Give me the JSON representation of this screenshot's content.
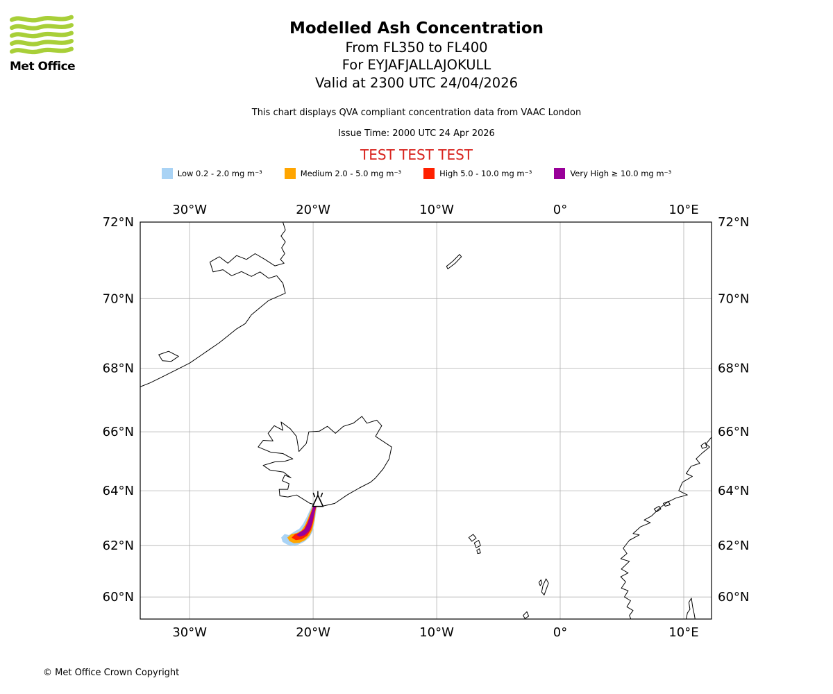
{
  "header": {
    "logo_text": "Met Office",
    "title": "Modelled Ash Concentration",
    "subtitle_flight_levels": "From FL350 to FL400",
    "subtitle_volcano": "For EYJAFJALLAJOKULL",
    "subtitle_valid": "Valid at 2300 UTC 24/04/2026",
    "note": "This chart displays QVA compliant concentration data from VAAC London",
    "issue_time": "Issue Time: 2000 UTC 24 Apr 2026",
    "test_banner": "TEST TEST TEST"
  },
  "colors": {
    "test_banner": "#d8231e",
    "grid": "#b0b0b0",
    "coastline": "#000000",
    "map_border": "#000000",
    "logo_green": "#a8cf38"
  },
  "legend": {
    "items": [
      {
        "key": "low",
        "label": "Low 0.2 - 2.0 mg m⁻³",
        "color": "#a9d3f5"
      },
      {
        "key": "medium",
        "label": "Medium 2.0 - 5.0 mg m⁻³",
        "color": "#ffa500"
      },
      {
        "key": "high",
        "label": "High 5.0 - 10.0 mg m⁻³",
        "color": "#ff2000"
      },
      {
        "key": "very-high",
        "label": "Very High ≥ 10.0 mg m⁻³",
        "color": "#990099"
      }
    ]
  },
  "footer": {
    "copyright": "© Met Office Crown Copyright"
  },
  "chart_data": {
    "type": "map",
    "projection": "mercator",
    "lon_range": [
      -34.0,
      12.25
    ],
    "lat_range": [
      59.1,
      72.0
    ],
    "grid_lons": [
      -30,
      -20,
      -10,
      0,
      10
    ],
    "lon_labels": [
      "30°W",
      "20°W",
      "10°W",
      "0°",
      "10°E"
    ],
    "grid_lats": [
      60,
      62,
      64,
      66,
      68,
      70,
      72
    ],
    "lat_labels": [
      "60°N",
      "62°N",
      "64°N",
      "66°N",
      "68°N",
      "70°N",
      "72°N"
    ],
    "volcano": {
      "name": "EYJAFJALLAJOKULL",
      "lon": -19.62,
      "lat": 63.63
    },
    "coastlines": [
      {
        "name": "greenland-east-coast",
        "points": [
          [
            -22.55,
            72.1
          ],
          [
            -22.25,
            71.8
          ],
          [
            -22.6,
            71.65
          ],
          [
            -22.25,
            71.5
          ],
          [
            -22.55,
            71.35
          ],
          [
            -22.3,
            71.2
          ],
          [
            -22.65,
            71.05
          ],
          [
            -22.35,
            70.95
          ],
          [
            -23.1,
            70.88
          ],
          [
            -23.9,
            71.05
          ],
          [
            -24.7,
            71.2
          ],
          [
            -25.4,
            71.05
          ],
          [
            -26.2,
            71.15
          ],
          [
            -26.9,
            70.95
          ],
          [
            -27.6,
            71.12
          ],
          [
            -28.35,
            70.98
          ],
          [
            -28.1,
            70.72
          ],
          [
            -27.3,
            70.78
          ],
          [
            -26.6,
            70.62
          ],
          [
            -25.8,
            70.73
          ],
          [
            -25.0,
            70.6
          ],
          [
            -24.3,
            70.72
          ],
          [
            -23.6,
            70.55
          ],
          [
            -22.95,
            70.62
          ],
          [
            -22.45,
            70.42
          ],
          [
            -22.25,
            70.15
          ],
          [
            -22.9,
            70.05
          ],
          [
            -23.6,
            69.95
          ],
          [
            -24.3,
            69.75
          ],
          [
            -25.0,
            69.55
          ],
          [
            -25.5,
            69.3
          ],
          [
            -26.2,
            69.15
          ],
          [
            -26.9,
            68.95
          ],
          [
            -27.6,
            68.75
          ],
          [
            -28.4,
            68.55
          ],
          [
            -29.2,
            68.35
          ],
          [
            -30.0,
            68.15
          ],
          [
            -30.8,
            68.0
          ],
          [
            -31.6,
            67.85
          ],
          [
            -32.4,
            67.7
          ],
          [
            -33.2,
            67.55
          ],
          [
            -34.2,
            67.4
          ]
        ]
      },
      {
        "name": "norway-west-coast",
        "points": [
          [
            12.3,
            65.85
          ],
          [
            11.8,
            65.6
          ],
          [
            12.1,
            65.5
          ],
          [
            11.5,
            65.3
          ],
          [
            11.0,
            65.1
          ],
          [
            11.3,
            64.95
          ],
          [
            10.6,
            64.85
          ],
          [
            10.2,
            64.6
          ],
          [
            10.7,
            64.5
          ],
          [
            9.9,
            64.3
          ],
          [
            9.6,
            64.0
          ],
          [
            10.3,
            63.85
          ],
          [
            9.4,
            63.75
          ],
          [
            8.7,
            63.6
          ],
          [
            8.1,
            63.4
          ],
          [
            7.4,
            63.1
          ],
          [
            6.8,
            62.95
          ],
          [
            7.3,
            62.85
          ],
          [
            6.5,
            62.7
          ],
          [
            5.9,
            62.45
          ],
          [
            6.4,
            62.4
          ],
          [
            5.6,
            62.2
          ],
          [
            5.1,
            61.9
          ],
          [
            5.4,
            61.7
          ],
          [
            4.9,
            61.5
          ],
          [
            5.6,
            61.4
          ],
          [
            4.95,
            61.1
          ],
          [
            5.5,
            60.95
          ],
          [
            4.9,
            60.8
          ],
          [
            5.3,
            60.6
          ],
          [
            4.95,
            60.35
          ],
          [
            5.5,
            60.25
          ],
          [
            5.2,
            60.0
          ],
          [
            5.7,
            59.85
          ],
          [
            5.4,
            59.6
          ],
          [
            5.9,
            59.45
          ],
          [
            5.6,
            59.25
          ],
          [
            5.8,
            59.0
          ]
        ]
      },
      {
        "name": "oslofjord-coast",
        "points": [
          [
            10.15,
            59.0
          ],
          [
            10.3,
            59.35
          ],
          [
            10.5,
            59.5
          ],
          [
            10.42,
            59.78
          ],
          [
            10.62,
            59.95
          ],
          [
            10.72,
            59.6
          ],
          [
            10.85,
            59.3
          ],
          [
            10.95,
            59.0
          ]
        ]
      }
    ],
    "islands": [
      {
        "name": "scoresby-island",
        "points": [
          [
            -32.5,
            68.4
          ],
          [
            -31.7,
            68.5
          ],
          [
            -30.9,
            68.35
          ],
          [
            -31.5,
            68.2
          ],
          [
            -32.2,
            68.22
          ]
        ]
      },
      {
        "name": "jan-mayen",
        "points": [
          [
            -9.1,
            70.8
          ],
          [
            -8.5,
            70.95
          ],
          [
            -8.0,
            71.12
          ],
          [
            -8.15,
            71.18
          ],
          [
            -8.7,
            71.0
          ],
          [
            -9.2,
            70.87
          ]
        ]
      },
      {
        "name": "iceland",
        "points": [
          [
            -22.7,
            63.82
          ],
          [
            -22.75,
            64.05
          ],
          [
            -22.05,
            64.05
          ],
          [
            -21.95,
            64.25
          ],
          [
            -22.5,
            64.35
          ],
          [
            -22.3,
            64.55
          ],
          [
            -21.8,
            64.45
          ],
          [
            -22.4,
            64.65
          ],
          [
            -23.5,
            64.72
          ],
          [
            -24.05,
            64.88
          ],
          [
            -23.1,
            65.0
          ],
          [
            -22.3,
            65.02
          ],
          [
            -21.65,
            65.1
          ],
          [
            -22.45,
            65.28
          ],
          [
            -23.4,
            65.32
          ],
          [
            -24.45,
            65.5
          ],
          [
            -24.05,
            65.72
          ],
          [
            -23.25,
            65.7
          ],
          [
            -23.65,
            65.95
          ],
          [
            -23.15,
            66.2
          ],
          [
            -22.45,
            66.05
          ],
          [
            -22.6,
            66.32
          ],
          [
            -21.85,
            66.1
          ],
          [
            -21.35,
            65.85
          ],
          [
            -21.15,
            65.35
          ],
          [
            -20.55,
            65.62
          ],
          [
            -20.35,
            66.0
          ],
          [
            -19.5,
            66.02
          ],
          [
            -18.85,
            66.18
          ],
          [
            -18.2,
            65.95
          ],
          [
            -17.55,
            66.18
          ],
          [
            -16.75,
            66.28
          ],
          [
            -16.05,
            66.5
          ],
          [
            -15.65,
            66.28
          ],
          [
            -14.85,
            66.38
          ],
          [
            -14.45,
            66.2
          ],
          [
            -14.95,
            65.85
          ],
          [
            -13.65,
            65.5
          ],
          [
            -13.85,
            65.1
          ],
          [
            -14.35,
            64.75
          ],
          [
            -14.95,
            64.45
          ],
          [
            -15.35,
            64.3
          ],
          [
            -16.25,
            64.1
          ],
          [
            -17.25,
            63.85
          ],
          [
            -18.25,
            63.55
          ],
          [
            -19.25,
            63.45
          ],
          [
            -20.25,
            63.55
          ],
          [
            -21.35,
            63.85
          ],
          [
            -22.05,
            63.78
          ]
        ]
      },
      {
        "name": "faroe-north",
        "points": [
          [
            -7.4,
            62.3
          ],
          [
            -7.05,
            62.42
          ],
          [
            -6.8,
            62.28
          ],
          [
            -7.15,
            62.16
          ]
        ]
      },
      {
        "name": "faroe-mid",
        "points": [
          [
            -6.95,
            62.1
          ],
          [
            -6.6,
            62.2
          ],
          [
            -6.45,
            62.0
          ],
          [
            -6.8,
            61.92
          ]
        ]
      },
      {
        "name": "faroe-south",
        "points": [
          [
            -6.75,
            61.82
          ],
          [
            -6.55,
            61.88
          ],
          [
            -6.45,
            61.72
          ],
          [
            -6.68,
            61.7
          ]
        ]
      },
      {
        "name": "shetland-main",
        "points": [
          [
            -1.4,
            60.45
          ],
          [
            -1.15,
            60.72
          ],
          [
            -0.95,
            60.55
          ],
          [
            -1.12,
            60.32
          ],
          [
            -1.3,
            60.08
          ],
          [
            -1.5,
            60.2
          ]
        ]
      },
      {
        "name": "shetland-west",
        "points": [
          [
            -1.72,
            60.58
          ],
          [
            -1.55,
            60.68
          ],
          [
            -1.48,
            60.55
          ],
          [
            -1.62,
            60.45
          ]
        ]
      },
      {
        "name": "orkney",
        "points": [
          [
            -3.0,
            59.25
          ],
          [
            -2.7,
            59.4
          ],
          [
            -2.55,
            59.22
          ],
          [
            -2.85,
            59.12
          ]
        ]
      },
      {
        "name": "smola",
        "points": [
          [
            7.6,
            63.35
          ],
          [
            8.0,
            63.45
          ],
          [
            8.15,
            63.35
          ],
          [
            7.8,
            63.25
          ]
        ]
      },
      {
        "name": "hitra",
        "points": [
          [
            8.35,
            63.55
          ],
          [
            8.75,
            63.62
          ],
          [
            8.9,
            63.5
          ],
          [
            8.5,
            63.45
          ]
        ]
      },
      {
        "name": "vega",
        "points": [
          [
            11.4,
            65.55
          ],
          [
            11.75,
            65.65
          ],
          [
            11.85,
            65.5
          ],
          [
            11.5,
            65.45
          ]
        ]
      }
    ],
    "ash_contours": [
      {
        "level": "low",
        "label": "Low 0.2 - 2.0 mg m⁻³",
        "color": "#a9d3f5",
        "points": [
          [
            -19.62,
            63.7
          ],
          [
            -19.75,
            63.35
          ],
          [
            -19.85,
            63.05
          ],
          [
            -19.95,
            62.75
          ],
          [
            -20.1,
            62.5
          ],
          [
            -20.35,
            62.3
          ],
          [
            -20.75,
            62.15
          ],
          [
            -21.2,
            62.05
          ],
          [
            -21.7,
            62.0
          ],
          [
            -22.1,
            62.05
          ],
          [
            -22.45,
            62.15
          ],
          [
            -22.55,
            62.3
          ],
          [
            -22.3,
            62.42
          ],
          [
            -21.95,
            62.38
          ],
          [
            -21.55,
            62.5
          ],
          [
            -21.1,
            62.62
          ],
          [
            -20.8,
            62.8
          ],
          [
            -20.5,
            63.05
          ],
          [
            -20.25,
            63.3
          ],
          [
            -19.95,
            63.55
          ]
        ]
      },
      {
        "level": "medium",
        "label": "Medium 2.0 - 5.0 mg m⁻³",
        "color": "#ffa500",
        "points": [
          [
            -19.66,
            63.64
          ],
          [
            -19.82,
            63.3
          ],
          [
            -19.93,
            62.95
          ],
          [
            -20.08,
            62.62
          ],
          [
            -20.3,
            62.4
          ],
          [
            -20.65,
            62.22
          ],
          [
            -21.1,
            62.12
          ],
          [
            -21.55,
            62.1
          ],
          [
            -21.9,
            62.18
          ],
          [
            -22.05,
            62.3
          ],
          [
            -21.75,
            62.42
          ],
          [
            -21.35,
            62.45
          ],
          [
            -20.95,
            62.55
          ],
          [
            -20.65,
            62.75
          ],
          [
            -20.4,
            63.0
          ],
          [
            -20.15,
            63.3
          ],
          [
            -19.9,
            63.55
          ]
        ]
      },
      {
        "level": "high",
        "label": "High 5.0 - 10.0 mg m⁻³",
        "color": "#ff2000",
        "points": [
          [
            -19.7,
            63.6
          ],
          [
            -19.88,
            63.25
          ],
          [
            -20.02,
            62.9
          ],
          [
            -20.2,
            62.6
          ],
          [
            -20.5,
            62.38
          ],
          [
            -20.95,
            62.25
          ],
          [
            -21.4,
            62.22
          ],
          [
            -21.7,
            62.3
          ],
          [
            -21.45,
            62.42
          ],
          [
            -21.05,
            62.48
          ],
          [
            -20.7,
            62.62
          ],
          [
            -20.45,
            62.85
          ],
          [
            -20.2,
            63.15
          ],
          [
            -19.95,
            63.45
          ]
        ]
      },
      {
        "level": "very-high",
        "label": "Very High ≥ 10.0 mg m⁻³",
        "color": "#990099",
        "points": [
          [
            -19.74,
            63.56
          ],
          [
            -19.95,
            63.15
          ],
          [
            -20.12,
            62.8
          ],
          [
            -20.35,
            62.55
          ],
          [
            -20.7,
            62.4
          ],
          [
            -21.1,
            62.35
          ],
          [
            -21.3,
            62.4
          ],
          [
            -21.05,
            62.5
          ],
          [
            -20.7,
            62.58
          ],
          [
            -20.45,
            62.78
          ],
          [
            -20.25,
            63.05
          ],
          [
            -20.0,
            63.4
          ]
        ]
      }
    ]
  }
}
